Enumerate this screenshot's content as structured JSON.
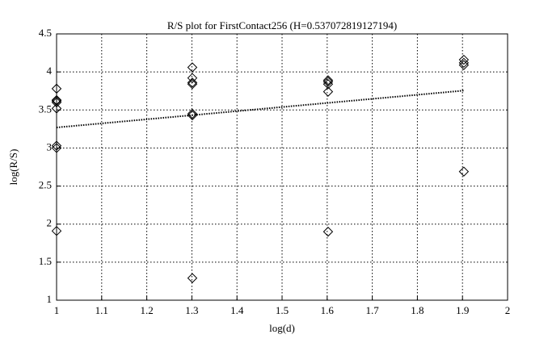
{
  "chart_data": {
    "type": "scatter",
    "title": "R/S plot for FirstContact256 (H=0.537072819127194)",
    "x_label": "log(d)",
    "y_label": "log(R/S)",
    "x": [
      1,
      1,
      1,
      1,
      1,
      1,
      1,
      1,
      1.301,
      1.301,
      1.301,
      1.301,
      1.301,
      1.301,
      1.301,
      1.602,
      1.602,
      1.602,
      1.602,
      1.602,
      1.903,
      1.903,
      1.903,
      1.903
    ],
    "values": [
      3.62,
      3.63,
      3.6,
      3.78,
      3.52,
      3.03,
      3.0,
      1.91,
      4.06,
      3.92,
      3.86,
      3.84,
      3.45,
      3.43,
      1.29,
      3.89,
      3.87,
      3.84,
      3.74,
      1.9,
      4.16,
      4.12,
      4.09,
      2.69
    ],
    "color": "#000000",
    "fit": {
      "x": [
        1,
        1.903
      ],
      "values": [
        3.27,
        3.755
      ]
    },
    "xlim": [
      1,
      2
    ],
    "xticks": [
      1,
      1.1,
      1.2,
      1.3,
      1.4,
      1.5,
      1.6,
      1.7,
      1.8,
      1.9,
      2
    ],
    "ylim": [
      1,
      4.5
    ],
    "yticks": [
      1,
      1.5,
      2,
      2.5,
      3,
      3.5,
      4,
      4.5
    ],
    "grid": true
  }
}
